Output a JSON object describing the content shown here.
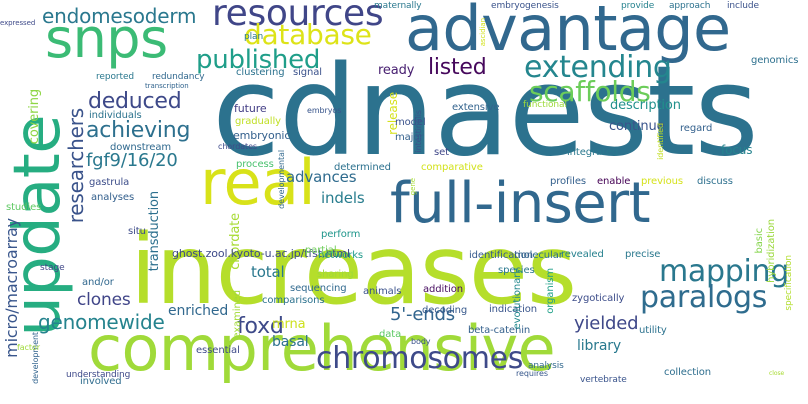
{
  "words": [
    {
      "text": "cdnaests",
      "color": "#2c728e"
    },
    {
      "text": "increases",
      "color": "#b5de2b"
    },
    {
      "text": "advantage",
      "color": "#31688e"
    },
    {
      "text": "comprehensive",
      "color": "#a0da39"
    },
    {
      "text": "update",
      "color": "#26ad81"
    },
    {
      "text": "full-insert",
      "color": "#31688e"
    },
    {
      "text": "real",
      "color": "#d8e219"
    },
    {
      "text": "snps",
      "color": "#3bbb75"
    },
    {
      "text": "resources",
      "color": "#404688"
    },
    {
      "text": "chromosomes",
      "color": "#3e4a89"
    },
    {
      "text": "endomesoderm",
      "color": "#2a788e"
    },
    {
      "text": "database",
      "color": "#dde318"
    },
    {
      "text": "published",
      "color": "#1f9e89"
    },
    {
      "text": "extending",
      "color": "#24868e"
    },
    {
      "text": "scaffolds",
      "color": "#6ccd5a"
    },
    {
      "text": "mapping",
      "color": "#2a788e"
    },
    {
      "text": "paralogs",
      "color": "#2f6c8e"
    },
    {
      "text": "listed",
      "color": "#46085c"
    },
    {
      "text": "deduced",
      "color": "#3e4989"
    },
    {
      "text": "achieving",
      "color": "#2d708e"
    },
    {
      "text": "researchers",
      "color": "#3a538b"
    },
    {
      "text": "fgf9/16/20",
      "color": "#2a788e"
    },
    {
      "text": "genomewide",
      "color": "#25838e"
    },
    {
      "text": "micro/macroarray",
      "color": "#39568c"
    },
    {
      "text": "foxd",
      "color": "#3e4a89"
    },
    {
      "text": "enriched",
      "color": "#31688e"
    },
    {
      "text": "5'-ends",
      "color": "#32658e"
    },
    {
      "text": "yielded",
      "color": "#3f4889"
    },
    {
      "text": "clones",
      "color": "#404588"
    },
    {
      "text": "advances",
      "color": "#2f6b8e"
    },
    {
      "text": "indels",
      "color": "#287d8e"
    },
    {
      "text": "total",
      "color": "#2a788e"
    },
    {
      "text": "basal",
      "color": "#2d718e"
    },
    {
      "text": "mrna",
      "color": "#cde11d"
    },
    {
      "text": "library",
      "color": "#29798e"
    },
    {
      "text": "description",
      "color": "#21918c"
    },
    {
      "text": "continue",
      "color": "#3a548c"
    },
    {
      "text": "ready",
      "color": "#482071"
    },
    {
      "text": "transduction",
      "color": "#2d708e"
    },
    {
      "text": "chordate",
      "color": "#a8db34"
    },
    {
      "text": "covering",
      "color": "#8ed645"
    },
    {
      "text": "release",
      "color": "#d5e21a"
    },
    {
      "text": "ghost.zool.kyoto-u.ac.jp/tfst.html",
      "color": "#3e4a89"
    },
    {
      "text": "future",
      "color": "#433e85"
    },
    {
      "text": "embryonic",
      "color": "#34608d"
    },
    {
      "text": "gradually",
      "color": "#c0df25"
    },
    {
      "text": "individuals",
      "color": "#2c738e"
    },
    {
      "text": "downstream",
      "color": "#30698e"
    },
    {
      "text": "regard",
      "color": "#34618d"
    },
    {
      "text": "focus",
      "color": "#25838e"
    },
    {
      "text": "integrated",
      "color": "#2a788e"
    },
    {
      "text": "comparative",
      "color": "#d2e21b"
    },
    {
      "text": "extensive",
      "color": "#33638d"
    },
    {
      "text": "major",
      "color": "#34618d"
    },
    {
      "text": "set",
      "color": "#3f4788"
    },
    {
      "text": "model",
      "color": "#3b528b"
    },
    {
      "text": "determined",
      "color": "#2c718e"
    },
    {
      "text": "process",
      "color": "#48c16e"
    },
    {
      "text": "studies",
      "color": "#5ec962"
    },
    {
      "text": "gastrula",
      "color": "#3d4e8a"
    },
    {
      "text": "analyses",
      "color": "#34608d"
    },
    {
      "text": "situ",
      "color": "#3e4c8a"
    },
    {
      "text": "stage",
      "color": "#3f4788"
    },
    {
      "text": "and/or",
      "color": "#31688e"
    },
    {
      "text": "networks",
      "color": "#1f9a8a"
    },
    {
      "text": "sharing",
      "color": "#9fda3a"
    },
    {
      "text": "sequencing",
      "color": "#30698e"
    },
    {
      "text": "partial",
      "color": "#6ece58"
    },
    {
      "text": "comparisons",
      "color": "#2c728e"
    },
    {
      "text": "examined",
      "color": "#a2da37"
    },
    {
      "text": "essential",
      "color": "#3e4a89"
    },
    {
      "text": "data",
      "color": "#5cc863"
    },
    {
      "text": "animals",
      "color": "#3b528b"
    },
    {
      "text": "addition",
      "color": "#470d60"
    },
    {
      "text": "decoding",
      "color": "#38598c"
    },
    {
      "text": "indication",
      "color": "#39558c"
    },
    {
      "text": "beta-catenin",
      "color": "#34618d"
    },
    {
      "text": "perform",
      "color": "#1f968b"
    },
    {
      "text": "molecular",
      "color": "#2e6f8e"
    },
    {
      "text": "identification",
      "color": "#375b8d"
    },
    {
      "text": "profiles",
      "color": "#34608d"
    },
    {
      "text": "enable",
      "color": "#440154"
    },
    {
      "text": "previous",
      "color": "#d5e21a"
    },
    {
      "text": "discuss",
      "color": "#2d708e"
    },
    {
      "text": "basic",
      "color": "#84d44b"
    },
    {
      "text": "precise",
      "color": "#2a788e"
    },
    {
      "text": "revealed",
      "color": "#26818e"
    },
    {
      "text": "species",
      "color": "#2a788e"
    },
    {
      "text": "evolutionary",
      "color": "#23898e"
    },
    {
      "text": "organism",
      "color": "#1fa088"
    },
    {
      "text": "zygotically",
      "color": "#3d4d8a"
    },
    {
      "text": "hybridization",
      "color": "#9bd93c"
    },
    {
      "text": "specification",
      "color": "#b2dd2d"
    },
    {
      "text": "utility",
      "color": "#2c728e"
    },
    {
      "text": "collection",
      "color": "#2e6e8e"
    },
    {
      "text": "vertebrate",
      "color": "#3a548c"
    },
    {
      "text": "analysis",
      "color": "#31688e"
    },
    {
      "text": "requires",
      "color": "#38588c"
    },
    {
      "text": "understanding",
      "color": "#3e4989"
    },
    {
      "text": "involved",
      "color": "#2f6c8e"
    },
    {
      "text": "development",
      "color": "#32648e"
    },
    {
      "text": "factor",
      "color": "#9fda3a"
    },
    {
      "text": "body",
      "color": "#3b528b"
    },
    {
      "text": "gene",
      "color": "#a5db36"
    },
    {
      "text": "chordates",
      "color": "#3e4a89"
    },
    {
      "text": "developmental",
      "color": "#31688e"
    },
    {
      "text": "embryos",
      "color": "#39568c"
    },
    {
      "text": "intestinalis",
      "color": "#3b528b"
    },
    {
      "text": "functional",
      "color": "#9dd93b"
    },
    {
      "text": "identified",
      "color": "#c2df23"
    },
    {
      "text": "genomics",
      "color": "#2d708e"
    },
    {
      "text": "maternally",
      "color": "#2a788e"
    },
    {
      "text": "embryogenesis",
      "color": "#3a538b"
    },
    {
      "text": "provide",
      "color": "#26828e"
    },
    {
      "text": "approach",
      "color": "#2c728e"
    },
    {
      "text": "include",
      "color": "#3b528b"
    },
    {
      "text": "expressed",
      "color": "#3e4a89"
    },
    {
      "text": "ascidian",
      "color": "#d2e21b"
    },
    {
      "text": "plan",
      "color": "#2a788e"
    },
    {
      "text": "reported",
      "color": "#2a788e"
    },
    {
      "text": "redundancy",
      "color": "#31688e"
    },
    {
      "text": "transcription",
      "color": "#32648e"
    },
    {
      "text": "clustering",
      "color": "#2c728e"
    },
    {
      "text": "signal",
      "color": "#3b528b"
    },
    {
      "text": "close",
      "color": "#a8db34"
    }
  ]
}
